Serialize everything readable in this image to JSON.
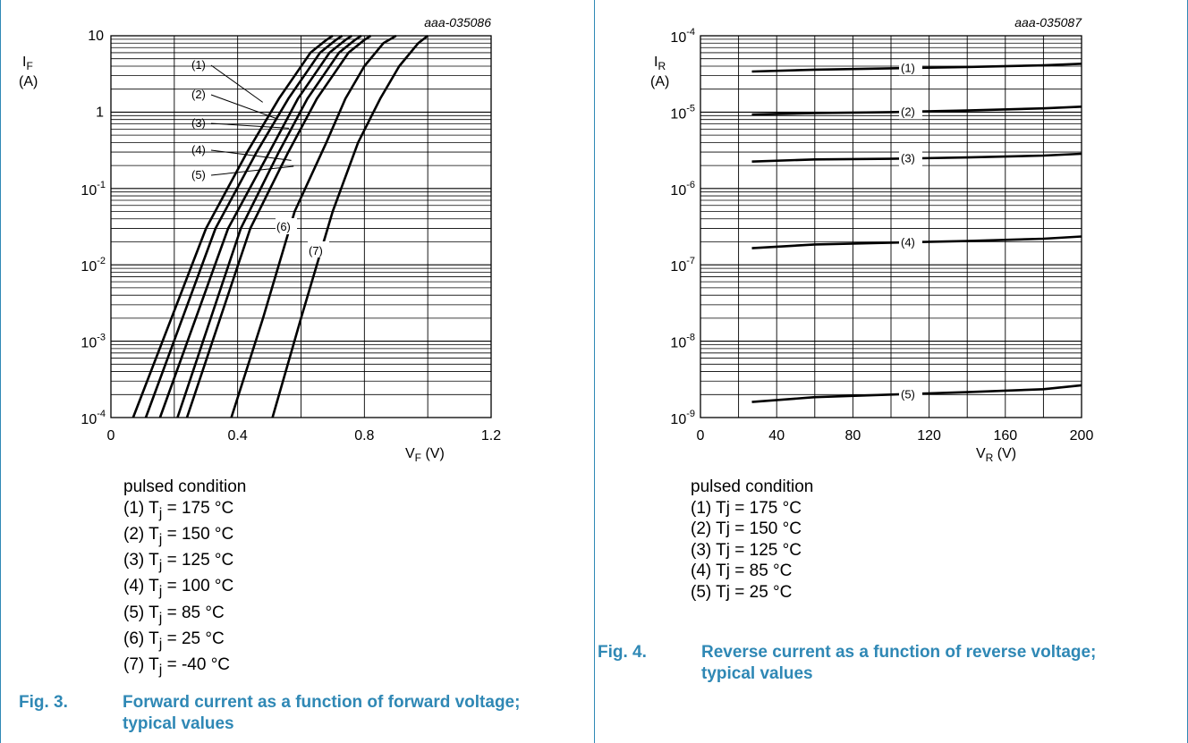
{
  "chart_data": [
    {
      "type": "line",
      "id_code": "aaa-035086",
      "xlabel": "V",
      "xlabel_sub": "F",
      "xlabel_unit": "(V)",
      "ylabel": "I",
      "ylabel_sub": "F",
      "ylabel_unit": "(A)",
      "x_scale": "linear",
      "y_scale": "log",
      "xlim": [
        0,
        1.2
      ],
      "ylim": [
        0.0001,
        10
      ],
      "x_ticks": [
        "0",
        "0.4",
        "0.8",
        "1.2"
      ],
      "grid": true,
      "series": [
        {
          "name": "(1)",
          "x": [
            0.07,
            0.3,
            0.43,
            0.53,
            0.58,
            0.63,
            0.68,
            0.7
          ],
          "y": [
            0.0001,
            0.03,
            0.3,
            1.5,
            3,
            6,
            8.8,
            10
          ]
        },
        {
          "name": "(2)",
          "x": [
            0.11,
            0.33,
            0.46,
            0.56,
            0.61,
            0.66,
            0.71,
            0.73
          ],
          "y": [
            0.0001,
            0.03,
            0.3,
            1.5,
            3,
            6,
            8.8,
            10
          ]
        },
        {
          "name": "(3)",
          "x": [
            0.155,
            0.37,
            0.5,
            0.59,
            0.64,
            0.69,
            0.74,
            0.76
          ],
          "y": [
            0.0001,
            0.03,
            0.3,
            1.5,
            3,
            6,
            8.8,
            10
          ]
        },
        {
          "name": "(4)",
          "x": [
            0.21,
            0.41,
            0.53,
            0.62,
            0.67,
            0.72,
            0.77,
            0.79
          ],
          "y": [
            0.0001,
            0.03,
            0.3,
            1.5,
            3,
            6,
            8.8,
            10
          ]
        },
        {
          "name": "(5)",
          "x": [
            0.24,
            0.44,
            0.56,
            0.65,
            0.7,
            0.75,
            0.8,
            0.82
          ],
          "y": [
            0.0001,
            0.03,
            0.3,
            1.5,
            3,
            6,
            8.8,
            10
          ]
        },
        {
          "name": "(6)",
          "x": [
            0.38,
            0.48,
            0.58,
            0.68,
            0.74,
            0.8,
            0.86,
            0.9
          ],
          "y": [
            0.0001,
            0.002,
            0.05,
            0.4,
            1.5,
            4,
            8,
            10
          ]
        },
        {
          "name": "(7)",
          "x": [
            0.51,
            0.6,
            0.7,
            0.78,
            0.85,
            0.91,
            0.97,
            1.0
          ],
          "y": [
            0.0001,
            0.002,
            0.05,
            0.4,
            1.5,
            4,
            8,
            10
          ]
        }
      ],
      "legend_title": "pulsed condition",
      "legend_items": [
        {
          "prefix": "(1) T",
          "sub": "j",
          "suffix": " = 175 °C"
        },
        {
          "prefix": "(2) T",
          "sub": "j",
          "suffix": " = 150 °C"
        },
        {
          "prefix": "(3) T",
          "sub": "j",
          "suffix": " = 125 °C"
        },
        {
          "prefix": "(4) T",
          "sub": "j",
          "suffix": " = 100 °C"
        },
        {
          "prefix": "(5) T",
          "sub": "j",
          "suffix": " = 85 °C"
        },
        {
          "prefix": "(6) T",
          "sub": "j",
          "suffix": " = 25 °C"
        },
        {
          "prefix": "(7) T",
          "sub": "j",
          "suffix": " = -40 °C"
        }
      ],
      "caption_num": "Fig. 3.",
      "caption_text": "Forward current as a function of forward voltage; typical values"
    },
    {
      "type": "line",
      "id_code": "aaa-035087",
      "xlabel": "V",
      "xlabel_sub": "R",
      "xlabel_unit": "(V)",
      "ylabel": "I",
      "ylabel_sub": "R",
      "ylabel_unit": "(A)",
      "x_scale": "linear",
      "y_scale": "log",
      "xlim": [
        0,
        200
      ],
      "ylim": [
        1e-09,
        0.0001
      ],
      "x_ticks": [
        "0",
        "40",
        "80",
        "120",
        "160",
        "200"
      ],
      "grid": true,
      "series": [
        {
          "name": "(1)",
          "x": [
            27,
            60,
            100,
            140,
            180,
            200
          ],
          "y": [
            3.4e-05,
            3.6e-05,
            3.75e-05,
            3.9e-05,
            4.1e-05,
            4.3e-05
          ]
        },
        {
          "name": "(2)",
          "x": [
            27,
            60,
            100,
            140,
            180,
            200
          ],
          "y": [
            9.3e-06,
            9.7e-06,
            1e-05,
            1.05e-05,
            1.12e-05,
            1.18e-05
          ]
        },
        {
          "name": "(3)",
          "x": [
            27,
            60,
            100,
            140,
            180,
            200
          ],
          "y": [
            2.25e-06,
            2.4e-06,
            2.45e-06,
            2.55e-06,
            2.7e-06,
            2.85e-06
          ]
        },
        {
          "name": "(4)",
          "x": [
            27,
            60,
            100,
            140,
            180,
            200
          ],
          "y": [
            1.65e-07,
            1.85e-07,
            1.95e-07,
            2.05e-07,
            2.2e-07,
            2.35e-07
          ]
        },
        {
          "name": "(5)",
          "x": [
            27,
            60,
            100,
            140,
            180,
            200
          ],
          "y": [
            1.6e-09,
            1.85e-09,
            2e-09,
            2.15e-09,
            2.35e-09,
            2.65e-09
          ]
        }
      ],
      "legend_title": "pulsed condition",
      "legend_items": [
        {
          "prefix": "(1) Tj = 175 °C",
          "sub": "",
          "suffix": ""
        },
        {
          "prefix": "(2) Tj = 150 °C",
          "sub": "",
          "suffix": ""
        },
        {
          "prefix": "(3) Tj = 125 °C",
          "sub": "",
          "suffix": ""
        },
        {
          "prefix": "(4) Tj = 85 °C",
          "sub": "",
          "suffix": ""
        },
        {
          "prefix": "(5) Tj = 25 °C",
          "sub": "",
          "suffix": ""
        }
      ],
      "caption_num": "Fig. 4.",
      "caption_text": "Reverse current as a function of reverse voltage; typical values"
    }
  ],
  "colors": {
    "accent": "#2f88b5",
    "line": "#000000",
    "grid": "#000000"
  }
}
